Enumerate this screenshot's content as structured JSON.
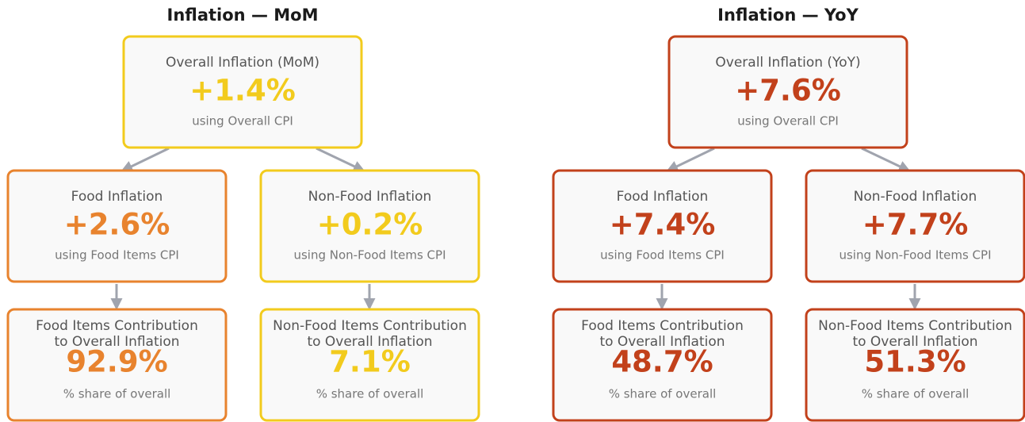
{
  "panels": [
    {
      "title": "Inflation — MoM",
      "nodes": [
        {
          "label_lines": [
            "Overall Inflation (MoM)"
          ],
          "value": "+1.4%",
          "sub": "using Overall CPI",
          "color": "#f2cb1d"
        },
        {
          "label_lines": [
            "Food Inflation"
          ],
          "value": "+2.6%",
          "sub": "using Food Items CPI",
          "color": "#e8832e"
        },
        {
          "label_lines": [
            "Non-Food Inflation"
          ],
          "value": "+0.2%",
          "sub": "using Non-Food Items CPI",
          "color": "#f2cb1d"
        },
        {
          "label_lines": [
            "Food Items Contribution",
            "to Overall Inflation"
          ],
          "value": "92.9%",
          "sub": "% share of overall",
          "color": "#e8832e"
        },
        {
          "label_lines": [
            "Non-Food Items Contribution",
            "to Overall Inflation"
          ],
          "value": "7.1%",
          "sub": "% share of overall",
          "color": "#f2cb1d"
        }
      ]
    },
    {
      "title": "Inflation — YoY",
      "nodes": [
        {
          "label_lines": [
            "Overall Inflation (YoY)"
          ],
          "value": "+7.6%",
          "sub": "using Overall CPI",
          "color": "#c2411b"
        },
        {
          "label_lines": [
            "Food Inflation"
          ],
          "value": "+7.4%",
          "sub": "using Food Items CPI",
          "color": "#c2411b"
        },
        {
          "label_lines": [
            "Non-Food Inflation"
          ],
          "value": "+7.7%",
          "sub": "using Non-Food Items CPI",
          "color": "#c2411b"
        },
        {
          "label_lines": [
            "Food Items Contribution",
            "to Overall Inflation"
          ],
          "value": "48.7%",
          "sub": "% share of overall",
          "color": "#c2411b"
        },
        {
          "label_lines": [
            "Non-Food Items Contribution",
            "to Overall Inflation"
          ],
          "value": "51.3%",
          "sub": "% share of overall",
          "color": "#c2411b"
        }
      ]
    }
  ]
}
